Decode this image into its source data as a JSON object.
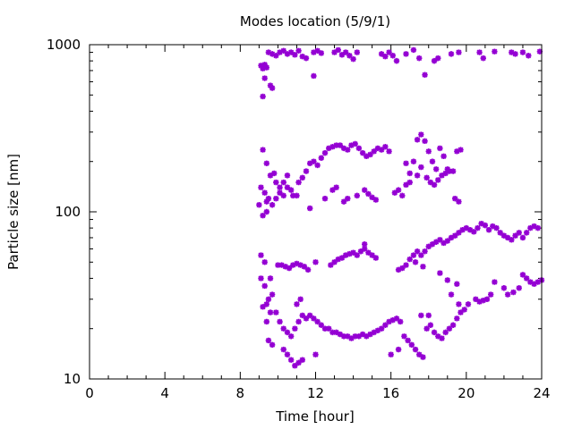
{
  "chart_data": {
    "type": "scatter",
    "title": "Modes location (5/9/1)",
    "xlabel": "Time [hour]",
    "ylabel": "Particle size [nm]",
    "xlim": [
      0,
      24
    ],
    "ylim": [
      10,
      1000
    ],
    "yscale": "log",
    "xticks": [
      0,
      4,
      8,
      12,
      16,
      20,
      24
    ],
    "xtick_labels": [
      "0",
      "4",
      "8",
      "12",
      "16",
      "20",
      "24"
    ],
    "yticks": [
      10,
      100,
      1000
    ],
    "ytick_labels": [
      "10",
      "100",
      "1000"
    ],
    "marker_color": "#9400d3",
    "marker": "star",
    "series": [
      {
        "points": [
          [
            9.1,
            750
          ],
          [
            9.2,
            720
          ],
          [
            9.3,
            760
          ],
          [
            9.4,
            730
          ],
          [
            9.5,
            900
          ],
          [
            9.7,
            880
          ],
          [
            9.9,
            860
          ],
          [
            10.1,
            900
          ],
          [
            10.3,
            920
          ],
          [
            10.5,
            880
          ],
          [
            10.7,
            900
          ],
          [
            10.9,
            870
          ],
          [
            11.1,
            920
          ],
          [
            11.3,
            850
          ],
          [
            11.5,
            830
          ],
          [
            11.9,
            900
          ],
          [
            12.1,
            920
          ],
          [
            12.3,
            890
          ],
          [
            13.0,
            900
          ],
          [
            13.2,
            930
          ],
          [
            13.4,
            870
          ],
          [
            13.6,
            900
          ],
          [
            13.8,
            860
          ],
          [
            14.0,
            820
          ],
          [
            14.2,
            900
          ],
          [
            15.5,
            880
          ],
          [
            15.7,
            850
          ],
          [
            15.9,
            900
          ],
          [
            16.1,
            860
          ],
          [
            16.3,
            800
          ],
          [
            16.8,
            880
          ],
          [
            17.2,
            930
          ],
          [
            17.5,
            830
          ],
          [
            17.8,
            660
          ],
          [
            18.3,
            800
          ],
          [
            18.5,
            830
          ],
          [
            19.2,
            880
          ],
          [
            19.6,
            900
          ],
          [
            20.7,
            900
          ],
          [
            20.9,
            830
          ],
          [
            21.5,
            910
          ],
          [
            22.4,
            900
          ],
          [
            22.6,
            880
          ],
          [
            23.0,
            900
          ],
          [
            23.3,
            860
          ],
          [
            23.9,
            910
          ],
          [
            9.2,
            490
          ],
          [
            9.3,
            630
          ],
          [
            9.6,
            570
          ],
          [
            9.7,
            550
          ],
          [
            11.9,
            650
          ]
        ]
      },
      {
        "points": [
          [
            9.2,
            235
          ],
          [
            9.4,
            195
          ],
          [
            9.6,
            165
          ],
          [
            9.8,
            170
          ],
          [
            9.9,
            150
          ],
          [
            10.1,
            140
          ],
          [
            10.3,
            150
          ],
          [
            10.5,
            165
          ],
          [
            10.7,
            135
          ],
          [
            10.8,
            125
          ],
          [
            11.1,
            150
          ],
          [
            11.3,
            160
          ],
          [
            11.5,
            175
          ],
          [
            11.7,
            195
          ],
          [
            11.9,
            200
          ],
          [
            12.1,
            190
          ],
          [
            12.3,
            210
          ],
          [
            12.5,
            225
          ],
          [
            12.7,
            240
          ],
          [
            12.9,
            245
          ],
          [
            13.1,
            250
          ],
          [
            13.3,
            250
          ],
          [
            13.5,
            240
          ],
          [
            13.7,
            235
          ],
          [
            13.9,
            250
          ],
          [
            14.1,
            255
          ],
          [
            14.3,
            240
          ],
          [
            14.5,
            225
          ],
          [
            14.7,
            215
          ],
          [
            14.9,
            220
          ],
          [
            15.1,
            230
          ],
          [
            15.3,
            240
          ],
          [
            15.5,
            235
          ],
          [
            15.7,
            245
          ],
          [
            15.9,
            230
          ],
          [
            16.8,
            195
          ],
          [
            17.0,
            170
          ],
          [
            17.2,
            200
          ],
          [
            17.4,
            270
          ],
          [
            17.6,
            290
          ],
          [
            17.8,
            265
          ],
          [
            18.0,
            230
          ],
          [
            18.2,
            200
          ],
          [
            18.4,
            180
          ],
          [
            18.6,
            240
          ],
          [
            18.8,
            215
          ],
          [
            19.0,
            180
          ],
          [
            19.5,
            230
          ],
          [
            19.7,
            235
          ],
          [
            9.1,
            140
          ],
          [
            9.3,
            130
          ],
          [
            9.4,
            115
          ],
          [
            9.5,
            120
          ],
          [
            9.7,
            110
          ],
          [
            9.9,
            120
          ],
          [
            10.1,
            130
          ],
          [
            10.3,
            125
          ],
          [
            10.5,
            140
          ],
          [
            11.0,
            125
          ],
          [
            11.7,
            105
          ],
          [
            12.5,
            120
          ],
          [
            12.9,
            135
          ],
          [
            13.1,
            140
          ],
          [
            13.5,
            115
          ],
          [
            13.7,
            120
          ],
          [
            14.2,
            125
          ],
          [
            14.6,
            135
          ],
          [
            14.8,
            128
          ],
          [
            15.0,
            122
          ],
          [
            15.2,
            118
          ],
          [
            16.2,
            130
          ],
          [
            16.4,
            135
          ],
          [
            16.6,
            125
          ],
          [
            16.8,
            145
          ],
          [
            17.0,
            150
          ],
          [
            17.4,
            165
          ],
          [
            17.6,
            185
          ],
          [
            17.9,
            160
          ],
          [
            18.1,
            150
          ],
          [
            18.3,
            145
          ],
          [
            18.5,
            155
          ],
          [
            18.7,
            165
          ],
          [
            18.9,
            170
          ],
          [
            19.1,
            175
          ],
          [
            19.3,
            175
          ],
          [
            19.4,
            120
          ],
          [
            19.6,
            115
          ],
          [
            9.0,
            110
          ],
          [
            9.2,
            95
          ],
          [
            9.4,
            100
          ]
        ]
      },
      {
        "points": [
          [
            9.1,
            55
          ],
          [
            9.3,
            50
          ],
          [
            9.6,
            40
          ],
          [
            10.0,
            48
          ],
          [
            10.2,
            48
          ],
          [
            10.4,
            47
          ],
          [
            10.6,
            46
          ],
          [
            10.8,
            48
          ],
          [
            11.0,
            49
          ],
          [
            11.2,
            48
          ],
          [
            11.4,
            47
          ],
          [
            11.6,
            45
          ],
          [
            12.0,
            50
          ],
          [
            12.8,
            48
          ],
          [
            13.0,
            50
          ],
          [
            13.2,
            52
          ],
          [
            13.4,
            53
          ],
          [
            13.6,
            55
          ],
          [
            13.8,
            56
          ],
          [
            14.0,
            57
          ],
          [
            14.2,
            55
          ],
          [
            14.4,
            58
          ],
          [
            14.6,
            60
          ],
          [
            14.8,
            57
          ],
          [
            15.0,
            55
          ],
          [
            15.2,
            53
          ],
          [
            16.6,
            46
          ],
          [
            16.8,
            48
          ],
          [
            17.0,
            52
          ],
          [
            17.2,
            55
          ],
          [
            17.4,
            58
          ],
          [
            17.6,
            55
          ],
          [
            17.8,
            58
          ],
          [
            18.0,
            62
          ],
          [
            18.2,
            64
          ],
          [
            18.4,
            66
          ],
          [
            18.6,
            68
          ],
          [
            18.8,
            65
          ],
          [
            19.0,
            67
          ],
          [
            19.2,
            70
          ],
          [
            19.4,
            72
          ],
          [
            19.6,
            75
          ],
          [
            19.8,
            78
          ],
          [
            20.0,
            80
          ],
          [
            20.2,
            78
          ],
          [
            20.4,
            76
          ],
          [
            20.6,
            80
          ],
          [
            20.8,
            85
          ],
          [
            21.0,
            83
          ],
          [
            21.2,
            78
          ],
          [
            21.4,
            82
          ],
          [
            21.6,
            80
          ],
          [
            21.8,
            75
          ],
          [
            22.0,
            72
          ],
          [
            22.2,
            70
          ],
          [
            22.4,
            68
          ],
          [
            22.6,
            72
          ],
          [
            22.8,
            75
          ],
          [
            23.0,
            70
          ],
          [
            23.2,
            75
          ],
          [
            23.4,
            80
          ],
          [
            23.6,
            82
          ],
          [
            23.8,
            80
          ],
          [
            14.6,
            64
          ],
          [
            16.4,
            45
          ],
          [
            17.3,
            50
          ],
          [
            17.7,
            47
          ],
          [
            18.6,
            43
          ],
          [
            19.0,
            39
          ],
          [
            19.5,
            37
          ],
          [
            9.4,
            28
          ],
          [
            9.6,
            25
          ],
          [
            9.7,
            32
          ]
        ]
      },
      {
        "points": [
          [
            9.2,
            27
          ],
          [
            9.4,
            22
          ],
          [
            9.5,
            17
          ],
          [
            9.7,
            16
          ],
          [
            9.9,
            25
          ],
          [
            10.1,
            22
          ],
          [
            10.3,
            20
          ],
          [
            10.5,
            19
          ],
          [
            10.7,
            18
          ],
          [
            10.9,
            20
          ],
          [
            11.1,
            22
          ],
          [
            11.3,
            24
          ],
          [
            11.5,
            23
          ],
          [
            11.7,
            24
          ],
          [
            11.9,
            23
          ],
          [
            12.1,
            22
          ],
          [
            12.3,
            21
          ],
          [
            12.5,
            20
          ],
          [
            12.7,
            20
          ],
          [
            12.9,
            19
          ],
          [
            13.1,
            19
          ],
          [
            13.3,
            18.5
          ],
          [
            13.5,
            18
          ],
          [
            13.7,
            18
          ],
          [
            13.9,
            17.5
          ],
          [
            14.1,
            18
          ],
          [
            14.3,
            18
          ],
          [
            14.5,
            18.5
          ],
          [
            14.7,
            18
          ],
          [
            14.9,
            18.5
          ],
          [
            15.1,
            19
          ],
          [
            15.3,
            19.5
          ],
          [
            15.5,
            20
          ],
          [
            15.7,
            21
          ],
          [
            15.9,
            22
          ],
          [
            16.1,
            22.5
          ],
          [
            16.3,
            23
          ],
          [
            16.5,
            22
          ],
          [
            16.7,
            18
          ],
          [
            16.9,
            17
          ],
          [
            17.1,
            16
          ],
          [
            17.3,
            15
          ],
          [
            17.5,
            14
          ],
          [
            17.7,
            13.5
          ],
          [
            17.9,
            20
          ],
          [
            18.1,
            21
          ],
          [
            18.3,
            19
          ],
          [
            18.5,
            18
          ],
          [
            18.7,
            17.5
          ],
          [
            18.9,
            19
          ],
          [
            19.1,
            20
          ],
          [
            19.3,
            21
          ],
          [
            19.5,
            23
          ],
          [
            19.7,
            25
          ],
          [
            19.9,
            26
          ],
          [
            20.1,
            28
          ],
          [
            20.5,
            30
          ],
          [
            20.7,
            29
          ],
          [
            20.9,
            29.5
          ],
          [
            21.1,
            30
          ],
          [
            21.3,
            32
          ],
          [
            21.5,
            38
          ],
          [
            22.0,
            35
          ],
          [
            22.2,
            32
          ],
          [
            22.5,
            33
          ],
          [
            22.8,
            35
          ],
          [
            23.0,
            42
          ],
          [
            23.2,
            40
          ],
          [
            23.4,
            38
          ],
          [
            23.6,
            37
          ],
          [
            23.8,
            38
          ],
          [
            24.0,
            39
          ],
          [
            10.3,
            15
          ],
          [
            10.5,
            14
          ],
          [
            10.7,
            13
          ],
          [
            10.9,
            12
          ],
          [
            11.1,
            12.5
          ],
          [
            11.3,
            13
          ],
          [
            11.0,
            28
          ],
          [
            11.2,
            30
          ],
          [
            12.0,
            14
          ],
          [
            9.1,
            40
          ],
          [
            9.3,
            36
          ],
          [
            9.5,
            30
          ],
          [
            16.0,
            14
          ],
          [
            16.4,
            15
          ],
          [
            17.6,
            24
          ],
          [
            18.0,
            24
          ],
          [
            19.2,
            32
          ],
          [
            19.6,
            28
          ]
        ]
      }
    ]
  }
}
